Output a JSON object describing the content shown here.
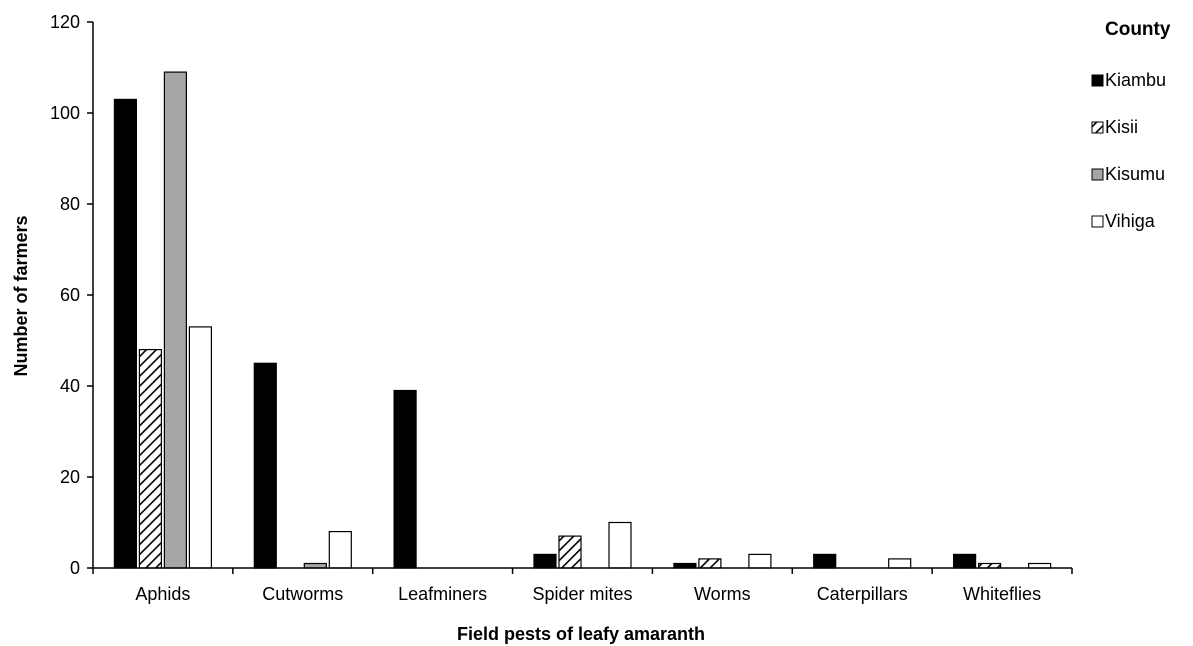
{
  "chart_data": {
    "type": "bar",
    "xlabel": "Field pests of leafy amaranth",
    "ylabel": "Number of farmers",
    "ylim": [
      0,
      120
    ],
    "yticks": [
      0,
      20,
      40,
      60,
      80,
      100,
      120
    ],
    "grid": false,
    "legend": {
      "title": "County",
      "placement": "right"
    },
    "categories": [
      "Aphids",
      "Cutworms",
      "Leafminers",
      "Spider mites",
      "Worms",
      "Caterpillars",
      "Whiteflies"
    ],
    "series": [
      {
        "name": "Kiambu",
        "fill": "solid-black",
        "color": "#000000",
        "values": [
          103,
          45,
          39,
          3,
          1,
          3,
          3
        ]
      },
      {
        "name": "Kisii",
        "fill": "diagonal-hatch",
        "color": "#000000",
        "values": [
          48,
          0,
          0,
          7,
          2,
          0,
          1
        ]
      },
      {
        "name": "Kisumu",
        "fill": "solid-gray",
        "color": "#a6a6a6",
        "values": [
          109,
          1,
          0,
          0,
          0,
          0,
          0
        ]
      },
      {
        "name": "Vihiga",
        "fill": "white",
        "color": "#ffffff",
        "values": [
          53,
          8,
          0,
          10,
          3,
          2,
          1
        ]
      }
    ]
  }
}
